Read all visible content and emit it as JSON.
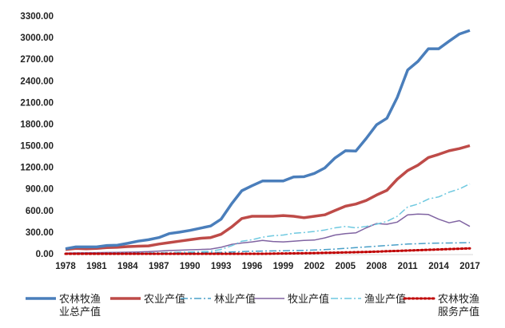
{
  "chart_data": {
    "type": "line",
    "title": "",
    "xlabel": "",
    "ylabel": "",
    "ylim": [
      0,
      3300
    ],
    "yticks": [
      "0.00",
      "300.00",
      "600.00",
      "900.00",
      "1200.00",
      "1500.00",
      "1800.00",
      "2100.00",
      "2400.00",
      "2700.00",
      "3000.00",
      "3300.00"
    ],
    "ytick_values": [
      0,
      300,
      600,
      900,
      1200,
      1500,
      1800,
      2100,
      2400,
      2700,
      3000,
      3300
    ],
    "xtick_years": [
      "1978",
      "1981",
      "1984",
      "1987",
      "1990",
      "1993",
      "1996",
      "1999",
      "2002",
      "2005",
      "2008",
      "2011",
      "2014",
      "2017"
    ],
    "x": [
      1978,
      1979,
      1980,
      1981,
      1982,
      1983,
      1984,
      1985,
      1986,
      1987,
      1988,
      1989,
      1990,
      1991,
      1992,
      1993,
      1994,
      1995,
      1996,
      1997,
      1998,
      1999,
      2000,
      2001,
      2002,
      2003,
      2004,
      2005,
      2006,
      2007,
      2008,
      2009,
      2010,
      2011,
      2012,
      2013,
      2014,
      2015,
      2016,
      2017
    ],
    "grid": false,
    "legend_position": "bottom",
    "series": [
      {
        "name": "农林牧渔业总产值",
        "legend_lines": [
          "农林牧渔",
          "业总产值"
        ],
        "color": "#4a7ebb",
        "dash": "solid",
        "width": 3.5,
        "values": [
          70,
          95,
          95,
          95,
          115,
          120,
          145,
          175,
          195,
          225,
          280,
          300,
          325,
          355,
          385,
          480,
          690,
          875,
          945,
          1010,
          1010,
          1010,
          1065,
          1070,
          1115,
          1190,
          1330,
          1430,
          1425,
          1600,
          1790,
          1880,
          2170,
          2550,
          2670,
          2845,
          2845,
          2950,
          3050,
          3100
        ]
      },
      {
        "name": "农业产值",
        "legend_lines": [
          "农业产值"
        ],
        "color": "#be4b48",
        "dash": "solid",
        "width": 3.5,
        "values": [
          60,
          75,
          70,
          75,
          85,
          90,
          100,
          105,
          110,
          135,
          155,
          175,
          195,
          215,
          225,
          270,
          370,
          490,
          520,
          520,
          520,
          530,
          520,
          500,
          520,
          540,
          600,
          660,
          690,
          740,
          815,
          880,
          1035,
          1155,
          1230,
          1335,
          1380,
          1430,
          1460,
          1500
        ]
      },
      {
        "name": "林业产值",
        "legend_lines": [
          "林业产值"
        ],
        "color": "#4aa0c8",
        "dash": "dashdot",
        "width": 1.5,
        "values": [
          5,
          5,
          6,
          6,
          7,
          7,
          8,
          8,
          9,
          10,
          12,
          13,
          14,
          15,
          17,
          20,
          25,
          30,
          35,
          38,
          40,
          42,
          45,
          48,
          52,
          58,
          65,
          75,
          85,
          95,
          105,
          115,
          125,
          135,
          140,
          145,
          148,
          150,
          152,
          155
        ]
      },
      {
        "name": "牧业产值",
        "legend_lines": [
          "牧业产值"
        ],
        "color": "#8064a2",
        "dash": "solid",
        "width": 1.5,
        "values": [
          10,
          12,
          14,
          16,
          18,
          20,
          22,
          25,
          30,
          38,
          45,
          50,
          55,
          60,
          65,
          90,
          130,
          150,
          165,
          185,
          170,
          165,
          175,
          185,
          190,
          220,
          260,
          280,
          290,
          360,
          420,
          410,
          440,
          540,
          550,
          545,
          480,
          430,
          460,
          380
        ]
      },
      {
        "name": "渔业产值",
        "legend_lines": [
          "渔业产值"
        ],
        "color": "#6fc9e0",
        "dash": "dashdot",
        "width": 1.5,
        "values": [
          3,
          4,
          5,
          5,
          6,
          7,
          8,
          10,
          12,
          15,
          18,
          22,
          26,
          30,
          35,
          60,
          110,
          175,
          195,
          230,
          250,
          260,
          285,
          295,
          310,
          330,
          360,
          380,
          360,
          380,
          410,
          450,
          520,
          650,
          690,
          760,
          790,
          855,
          900,
          970
        ]
      },
      {
        "name": "农林牧渔服务产值",
        "legend_lines": [
          "农林牧渔",
          "服务产值"
        ],
        "color": "#c00000",
        "dash": "dotted",
        "width": 3,
        "values": [
          0,
          0,
          0,
          0,
          0,
          0,
          0,
          0,
          0,
          0,
          0,
          0,
          0,
          0,
          0,
          0,
          0,
          0,
          0,
          0,
          2,
          4,
          5,
          8,
          10,
          13,
          16,
          19,
          22,
          25,
          30,
          35,
          40,
          45,
          50,
          55,
          60,
          65,
          70,
          75
        ]
      }
    ]
  }
}
